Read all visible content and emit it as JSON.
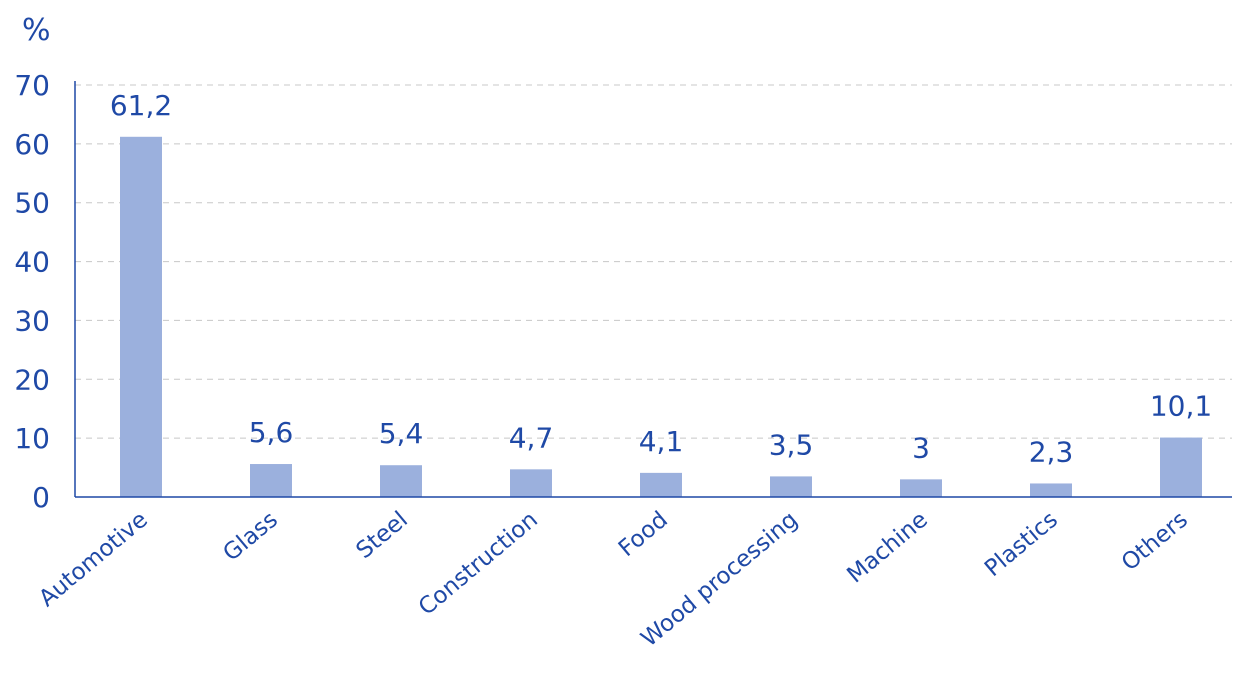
{
  "chart_data": {
    "type": "bar",
    "title": "",
    "xlabel": "",
    "ylabel": "%",
    "categories": [
      "Automotive",
      "Glass",
      "Steel",
      "Construction",
      "Food",
      "Wood processing",
      "Machine",
      "Plastics",
      "Others"
    ],
    "values": [
      61.2,
      5.6,
      5.4,
      4.7,
      4.1,
      3.5,
      3,
      2.3,
      10.1
    ],
    "value_labels": [
      "61,2",
      "5,6",
      "5,4",
      "4,7",
      "4,1",
      "3,5",
      "3",
      "2,3",
      "10,1"
    ],
    "ylim": [
      0,
      70
    ],
    "yticks": [
      0,
      10,
      20,
      30,
      40,
      50,
      60,
      70
    ],
    "grid": true,
    "legend": "none"
  },
  "colors": {
    "bar": "#9bb0dd",
    "text": "#1f49a6",
    "axis": "#1f49a6",
    "grid": "#c8c8c8"
  }
}
